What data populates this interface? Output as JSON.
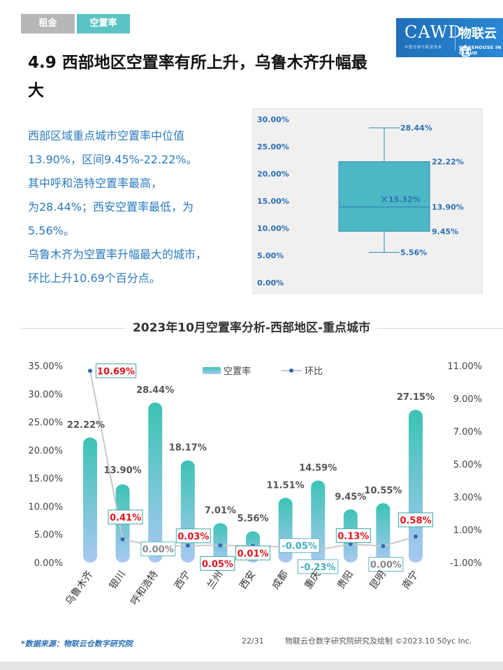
{
  "tabs": [
    {
      "label": "租金"
    },
    {
      "label": "空置率"
    }
  ],
  "logo": {
    "left": "CAWD",
    "left_sub": "中国仓储与配送协会",
    "right": "物联云仓",
    "right_sub": "WAREHOUSE IN CLOUD"
  },
  "title": "4.9 西部地区空置率有所上升，乌鲁木齐升幅最大",
  "description": [
    "西部区域重点城市空置率中位值",
    "13.90%，区间9.45%-22.22%。",
    "其中呼和浩特空置率最高，",
    "为28.44%；西安空置率最低，为",
    "5.56%。",
    "乌鲁木齐为空置率升幅最大的城市，",
    "环比上升10.69个百分点。"
  ],
  "chart_data": [
    {
      "type": "box",
      "ylim": [
        0,
        30
      ],
      "yticks": [
        "0.00%",
        "5.00%",
        "10.00%",
        "15.00%",
        "20.00%",
        "25.00%",
        "30.00%"
      ],
      "min": 5.56,
      "q1": 9.45,
      "median": 13.9,
      "q3": 22.22,
      "max": 28.44,
      "mean": 15.32,
      "labels": {
        "max": "28.44%",
        "q3": "22.22%",
        "median": "13.90%",
        "q1": "9.45%",
        "min": "5.56%",
        "mean": "15.32%"
      },
      "color": "#4cb8c4"
    },
    {
      "type": "bar+line",
      "title": "2023年10月空置率分析-西部地区-重点城市",
      "categories": [
        "乌鲁木齐",
        "银川",
        "呼和浩特",
        "西宁",
        "兰州",
        "西安",
        "成都",
        "重庆",
        "贵阳",
        "昆明",
        "南宁"
      ],
      "series": [
        {
          "name": "空置率",
          "type": "bar",
          "axis": "left",
          "values": [
            22.22,
            13.9,
            28.44,
            18.17,
            7.01,
            5.56,
            11.51,
            14.59,
            9.45,
            10.55,
            27.15
          ],
          "labels": [
            "22.22%",
            "13.90%",
            "28.44%",
            "18.17%",
            "7.01%",
            "5.56%",
            "11.51%",
            "14.59%",
            "9.45%",
            "10.55%",
            "27.15%"
          ]
        },
        {
          "name": "环比",
          "type": "line",
          "axis": "right",
          "values": [
            10.69,
            0.41,
            0.0,
            0.03,
            0.05,
            0.01,
            -0.05,
            -0.23,
            0.13,
            0.0,
            0.58
          ],
          "labels": [
            "10.69%",
            "0.41%",
            "0.00%",
            "0.03%",
            "0.05%",
            "0.01%",
            "-0.05%",
            "-0.23%",
            "0.13%",
            "0.00%",
            "0.58%"
          ]
        }
      ],
      "left_axis": {
        "range": [
          0,
          35
        ],
        "ticks": [
          "0.00%",
          "5.00%",
          "10.00%",
          "15.00%",
          "20.00%",
          "25.00%",
          "30.00%",
          "35.00%"
        ]
      },
      "right_axis": {
        "range": [
          -1,
          11
        ],
        "ticks": [
          "-1.00%",
          "1.00%",
          "3.00%",
          "5.00%",
          "7.00%",
          "9.00%",
          "11.00%"
        ]
      },
      "legend": "top-center",
      "colors": {
        "bar_top": "#3cc3b4",
        "bar_bottom": "#a9c8f2",
        "line": "#c8c8c8",
        "marker": "#2e6db4",
        "positive": "#e0141e",
        "negative": "#3fb0c4",
        "zero": "#888888"
      }
    }
  ],
  "footer": {
    "source": "*数据来源：物联云仓数字研究院",
    "page": "22/31",
    "copyright": "物联云仓数字研究院研究及绘制  ©2023.10 50yc Inc."
  }
}
